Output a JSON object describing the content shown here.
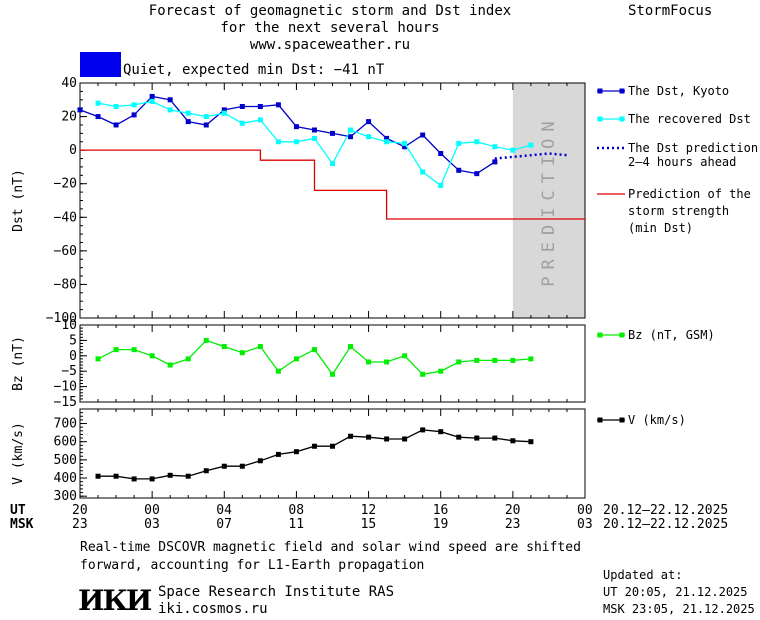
{
  "header": {
    "title_line1": "Forecast of geomagnetic storm and Dst index",
    "title_line2": "for the next several hours",
    "title_line3": "www.spaceweather.ru",
    "brand": "StormFocus"
  },
  "status": {
    "color": "#0000ee",
    "text": "Quiet, expected min Dst: −41 nT"
  },
  "legend": {
    "dst_kyoto": "The Dst, Kyoto",
    "recovered": "The recovered Dst",
    "prediction_l1": "The Dst prediction",
    "prediction_l2": "2–4 hours ahead",
    "strength_l1": "Prediction of the",
    "strength_l2": "storm strength",
    "strength_l3": "(min Dst)",
    "bz": "Bz (nT, GSM)",
    "v": "V (km/s)"
  },
  "colors": {
    "dst_kyoto": "#0000cc",
    "recovered": "#00ffff",
    "prediction": "#0000cc",
    "strength": "#dd0000",
    "bz": "#00ee00",
    "v": "#000000",
    "prediction_band": "#d8d8d8"
  },
  "time_axis": {
    "ut_label": "UT",
    "msk_label": "MSK",
    "ut_ticks": [
      "20",
      "00",
      "04",
      "08",
      "12",
      "16",
      "20",
      "00"
    ],
    "msk_ticks": [
      "23",
      "03",
      "07",
      "11",
      "15",
      "19",
      "23",
      "03"
    ],
    "ut_range": "20.12–22.12.2025",
    "msk_range": "20.12–22.12.2025"
  },
  "footer": {
    "note_line1": "Real-time DSCOVR magnetic field and solar wind speed are shifted",
    "note_line2": "forward, accounting for L1-Earth propagation",
    "logo_text": "ИКИ",
    "institute": "Space Research Institute RAS",
    "site": "iki.cosmos.ru",
    "updated_label": "Updated at:",
    "updated_ut": "UT  20:05, 21.12.2025",
    "updated_msk": "MSK 23:05, 21.12.2025"
  },
  "chart_data": [
    {
      "type": "line",
      "ylabel": "Dst (nT)",
      "ylim": [
        -100,
        40
      ],
      "yticks": [
        40,
        20,
        0,
        -20,
        -40,
        -60,
        -80,
        -100
      ],
      "xlim": [
        0,
        28
      ],
      "band": {
        "label": "PREDICTION",
        "x0": 24,
        "x1": 28
      },
      "series": [
        {
          "name": "The Dst, Kyoto",
          "style": "line-square",
          "x": [
            0,
            1,
            2,
            3,
            4,
            5,
            6,
            7,
            8,
            9,
            10,
            11,
            12,
            13,
            14,
            15,
            16,
            17,
            18,
            19,
            20,
            21,
            22,
            23
          ],
          "y": [
            24,
            20,
            15,
            21,
            32,
            30,
            17,
            15,
            24,
            26,
            26,
            27,
            14,
            12,
            10,
            8,
            17,
            7,
            2,
            9,
            -2,
            -12,
            -14,
            -7
          ]
        },
        {
          "name": "The recovered Dst",
          "style": "line-square",
          "x": [
            1,
            2,
            3,
            4,
            5,
            6,
            7,
            8,
            9,
            10,
            11,
            12,
            13,
            14,
            15,
            16,
            17,
            18,
            19,
            20,
            21,
            22,
            23,
            24,
            25
          ],
          "y": [
            28,
            26,
            27,
            29,
            24,
            22,
            20,
            22,
            16,
            18,
            5,
            5,
            7,
            -8,
            12,
            8,
            5,
            4,
            -13,
            -21,
            4,
            5,
            2,
            0,
            3
          ]
        },
        {
          "name": "The Dst prediction 2–4 hours ahead",
          "style": "dotted",
          "x": [
            23,
            24,
            25,
            26,
            27
          ],
          "y": [
            -5,
            -4,
            -3,
            -2,
            -3
          ]
        },
        {
          "name": "Prediction of the storm strength (min Dst)",
          "style": "step",
          "x": [
            0,
            9,
            10,
            12,
            13,
            16,
            17,
            28
          ],
          "y": [
            0,
            0,
            -6,
            -6,
            -24,
            -24,
            -41,
            -41
          ]
        }
      ]
    },
    {
      "type": "line",
      "ylabel": "Bz (nT)",
      "ylim": [
        -15,
        10
      ],
      "yticks": [
        10,
        5,
        0,
        -5,
        -10,
        -15
      ],
      "xlim": [
        0,
        28
      ],
      "series": [
        {
          "name": "Bz (nT, GSM)",
          "x": [
            1,
            2,
            3,
            4,
            5,
            6,
            7,
            8,
            9,
            10,
            11,
            12,
            13,
            14,
            15,
            16,
            17,
            18,
            19,
            20,
            21,
            22,
            23,
            24,
            25
          ],
          "y": [
            -1,
            2,
            2,
            0,
            -3,
            -1,
            5,
            3,
            1,
            3,
            -5,
            -1,
            2,
            -6,
            3,
            -2,
            -2,
            0,
            -6,
            -5,
            -2,
            -1.5,
            -1.5,
            -1.5,
            -1
          ]
        }
      ]
    },
    {
      "type": "line",
      "ylabel": "V (km/s)",
      "ylim": [
        290,
        780
      ],
      "yticks": [
        700,
        600,
        500,
        400,
        300
      ],
      "xlim": [
        0,
        28
      ],
      "series": [
        {
          "name": "V (km/s)",
          "x": [
            1,
            2,
            3,
            4,
            5,
            6,
            7,
            8,
            9,
            10,
            11,
            12,
            13,
            14,
            15,
            16,
            17,
            18,
            19,
            20,
            21,
            22,
            23,
            24,
            25
          ],
          "y": [
            410,
            410,
            395,
            395,
            415,
            410,
            440,
            465,
            465,
            495,
            530,
            545,
            575,
            575,
            630,
            625,
            615,
            615,
            665,
            655,
            625,
            620,
            620,
            605,
            600
          ]
        }
      ]
    }
  ]
}
